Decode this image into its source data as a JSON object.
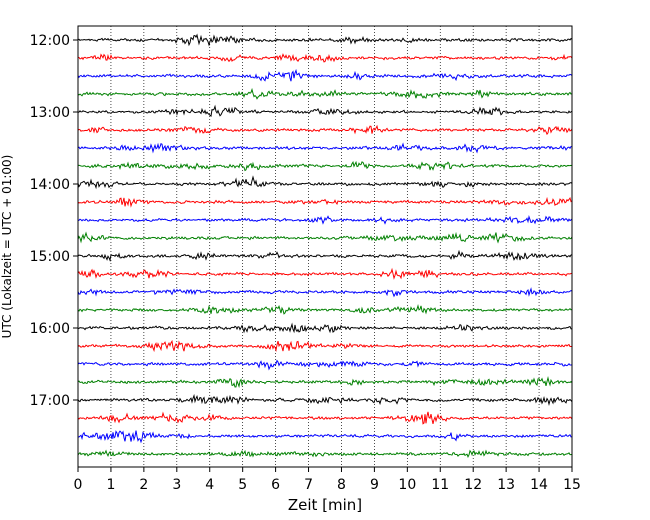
{
  "chart_data": {
    "type": "line",
    "title": "",
    "xlabel": "Zeit  [min]",
    "ylabel": "UTC (Lokalzeit = UTC + 01:00)",
    "x_ticks": [
      "0",
      "1",
      "2",
      "3",
      "4",
      "5",
      "6",
      "7",
      "8",
      "9",
      "10",
      "11",
      "12",
      "13",
      "14",
      "15"
    ],
    "xlim": [
      0,
      15
    ],
    "y_ticks": [
      "12:00",
      "13:00",
      "14:00",
      "15:00",
      "16:00",
      "17:00"
    ],
    "grid": "vertical dotted",
    "trace_colors": [
      "#000000",
      "#ff0000",
      "#0000ff",
      "#008000"
    ],
    "traces": [
      {
        "start": "12:00"
      },
      {
        "start": "12:15"
      },
      {
        "start": "12:30"
      },
      {
        "start": "12:45"
      },
      {
        "start": "13:00"
      },
      {
        "start": "13:15"
      },
      {
        "start": "13:30"
      },
      {
        "start": "13:45"
      },
      {
        "start": "14:00"
      },
      {
        "start": "14:15"
      },
      {
        "start": "14:30"
      },
      {
        "start": "14:45"
      },
      {
        "start": "15:00"
      },
      {
        "start": "15:15"
      },
      {
        "start": "15:30"
      },
      {
        "start": "15:45"
      },
      {
        "start": "16:00"
      },
      {
        "start": "16:15"
      },
      {
        "start": "16:30"
      },
      {
        "start": "16:45"
      },
      {
        "start": "17:00"
      },
      {
        "start": "17:15"
      },
      {
        "start": "17:30"
      },
      {
        "start": "17:45"
      }
    ]
  }
}
